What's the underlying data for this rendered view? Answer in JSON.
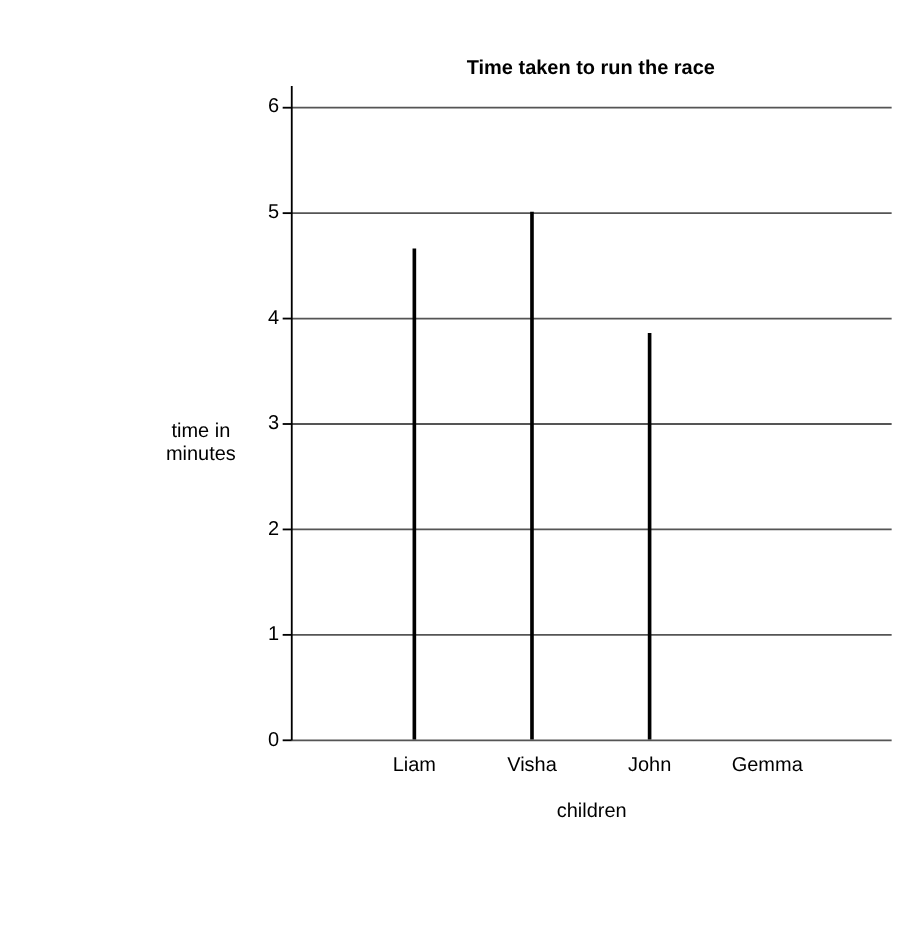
{
  "chart_data": {
    "type": "bar",
    "title": "Time taken to run the race",
    "xlabel": "children",
    "ylabel": "time in\nminutes",
    "categories": [
      "Liam",
      "Visha",
      "John",
      "Gemma"
    ],
    "values": [
      4.65,
      5,
      3.85,
      null
    ],
    "color": "#000000",
    "ylim": [
      0,
      6.2
    ],
    "yticks": [
      0,
      1,
      2,
      3,
      4,
      5,
      6
    ],
    "grid": "y"
  }
}
